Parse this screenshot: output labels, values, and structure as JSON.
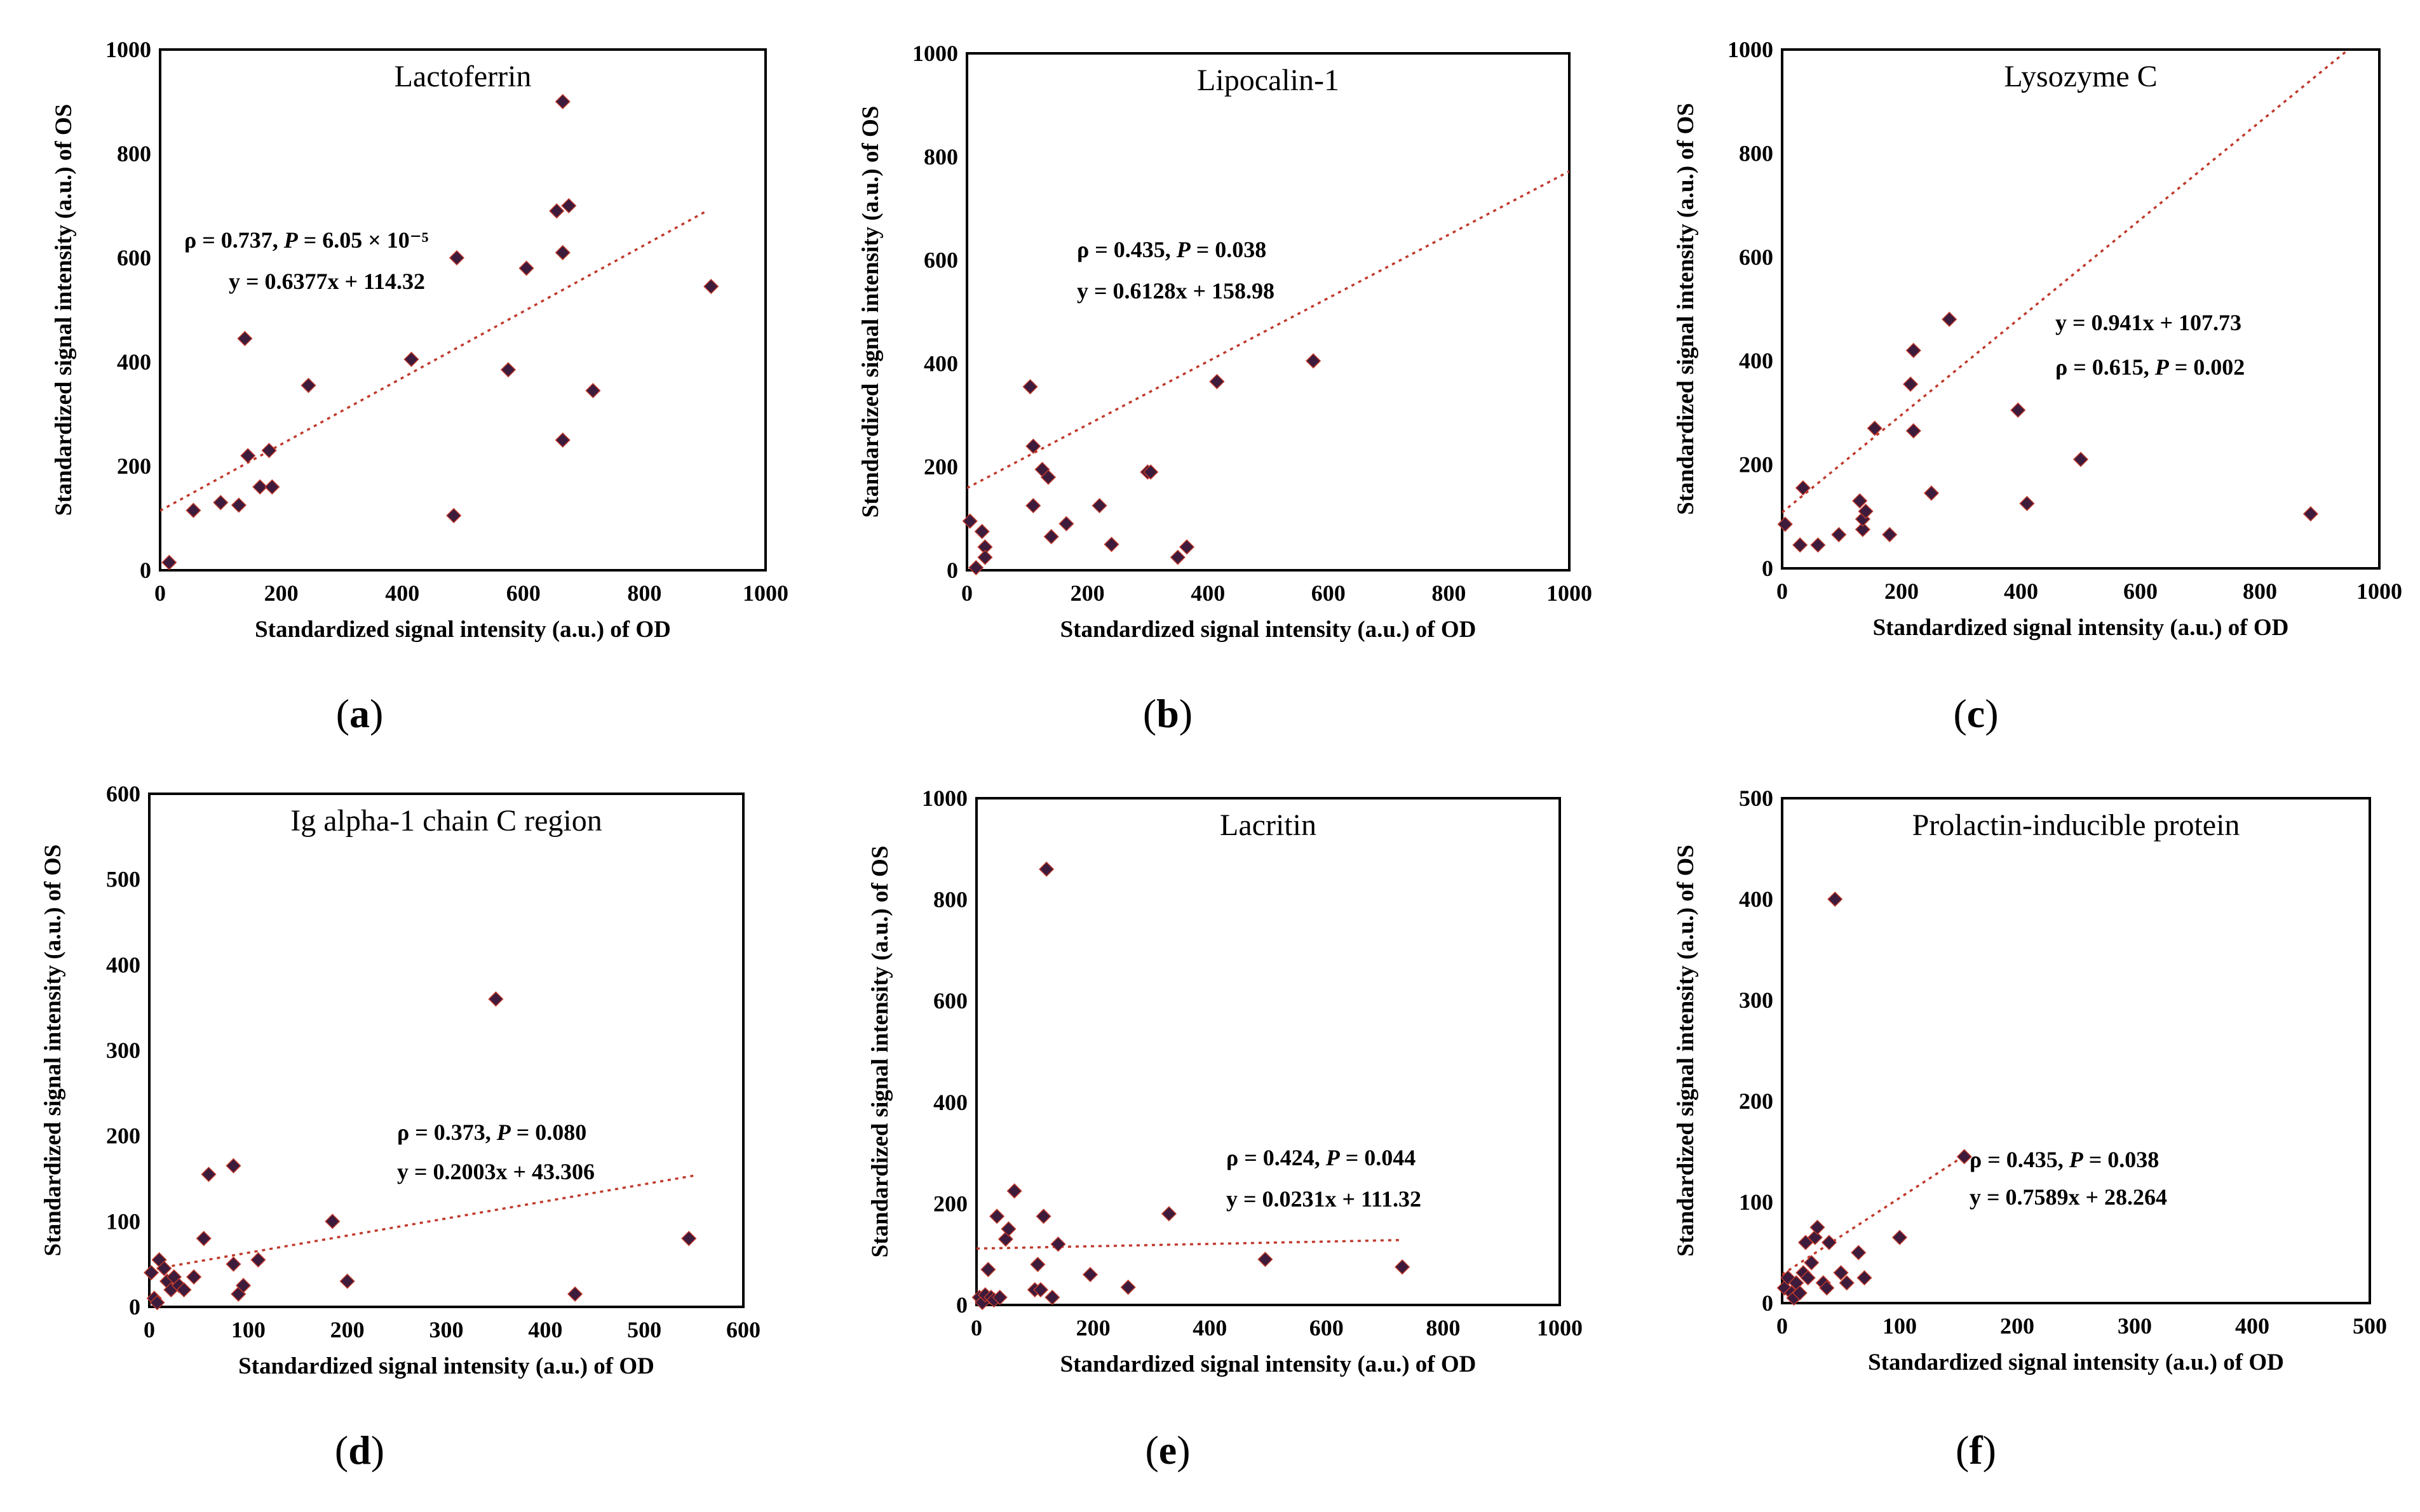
{
  "figure": {
    "panels": [
      {
        "id": "a",
        "label_text": "(a)",
        "letter": "a"
      },
      {
        "id": "b",
        "label_text": "(b)",
        "letter": "b"
      },
      {
        "id": "c",
        "label_text": "(c)",
        "letter": "c"
      },
      {
        "id": "d",
        "label_text": "(d)",
        "letter": "d"
      },
      {
        "id": "e",
        "label_text": "(e)",
        "letter": "e"
      },
      {
        "id": "f",
        "label_text": "(f)",
        "letter": "f"
      }
    ]
  },
  "chart_data": [
    {
      "panel": "a",
      "type": "scatter",
      "title": "Lactoferrin",
      "xlabel": "Standardized signal intensity (a.u.) of OD",
      "ylabel": "Standardized signal intensity (a.u.) of OS",
      "xlim": [
        0,
        1000
      ],
      "ylim": [
        0,
        1000
      ],
      "xticks": [
        0,
        200,
        400,
        600,
        800,
        1000
      ],
      "yticks": [
        0,
        200,
        400,
        600,
        800,
        1000
      ],
      "points": [
        [
          15,
          15
        ],
        [
          55,
          115
        ],
        [
          100,
          130
        ],
        [
          130,
          125
        ],
        [
          140,
          445
        ],
        [
          145,
          220
        ],
        [
          165,
          160
        ],
        [
          180,
          230
        ],
        [
          185,
          160
        ],
        [
          245,
          355
        ],
        [
          415,
          405
        ],
        [
          485,
          105
        ],
        [
          490,
          600
        ],
        [
          575,
          385
        ],
        [
          605,
          580
        ],
        [
          655,
          690
        ],
        [
          665,
          900
        ],
        [
          665,
          610
        ],
        [
          665,
          250
        ],
        [
          675,
          700
        ],
        [
          715,
          345
        ],
        [
          910,
          545
        ]
      ],
      "trendline": {
        "slope": 0.6377,
        "intercept": 114.32,
        "x_range": [
          0,
          900
        ]
      },
      "annotations": {
        "corr": "ρ = 0.737, ",
        "p_label": "P",
        "p_value": " =  6.05 × 10⁻⁵",
        "equation": "y = 0.6377x + 114.32"
      }
    },
    {
      "panel": "b",
      "type": "scatter",
      "title": "Lipocalin-1",
      "xlabel": "Standardized signal intensity (a.u.) of OD",
      "ylabel": "Standardized signal intensity (a.u.) of OS",
      "xlim": [
        0,
        1000
      ],
      "ylim": [
        0,
        1000
      ],
      "xticks": [
        0,
        200,
        400,
        600,
        800,
        1000
      ],
      "yticks": [
        0,
        200,
        400,
        600,
        800,
        1000
      ],
      "points": [
        [
          5,
          95
        ],
        [
          15,
          5
        ],
        [
          25,
          75
        ],
        [
          30,
          45
        ],
        [
          30,
          25
        ],
        [
          105,
          355
        ],
        [
          110,
          240
        ],
        [
          110,
          125
        ],
        [
          125,
          195
        ],
        [
          135,
          180
        ],
        [
          140,
          65
        ],
        [
          165,
          90
        ],
        [
          220,
          125
        ],
        [
          240,
          50
        ],
        [
          300,
          190
        ],
        [
          305,
          190
        ],
        [
          350,
          25
        ],
        [
          365,
          45
        ],
        [
          415,
          365
        ],
        [
          575,
          405
        ]
      ],
      "trendline": {
        "slope": 0.6128,
        "intercept": 158.98,
        "x_range": [
          0,
          1000
        ]
      },
      "annotations": {
        "corr": "ρ = 0.435, ",
        "p_label": "P",
        "p_value": " =  0.038",
        "equation": "y = 0.6128x + 158.98"
      }
    },
    {
      "panel": "c",
      "type": "scatter",
      "title": "Lysozyme C",
      "xlabel": "Standardized signal intensity (a.u.) of OD",
      "ylabel": "Standardized signal intensity (a.u.) of OS",
      "xlim": [
        0,
        1000
      ],
      "ylim": [
        0,
        1000
      ],
      "xticks": [
        0,
        200,
        400,
        600,
        800,
        1000
      ],
      "yticks": [
        0,
        200,
        400,
        600,
        800,
        1000
      ],
      "points": [
        [
          5,
          85
        ],
        [
          30,
          45
        ],
        [
          35,
          155
        ],
        [
          60,
          45
        ],
        [
          95,
          65
        ],
        [
          130,
          130
        ],
        [
          135,
          75
        ],
        [
          135,
          95
        ],
        [
          140,
          110
        ],
        [
          155,
          270
        ],
        [
          180,
          65
        ],
        [
          215,
          355
        ],
        [
          220,
          420
        ],
        [
          220,
          265
        ],
        [
          250,
          145
        ],
        [
          280,
          480
        ],
        [
          395,
          305
        ],
        [
          410,
          125
        ],
        [
          500,
          210
        ],
        [
          885,
          105
        ]
      ],
      "trendline": {
        "slope": 0.941,
        "intercept": 107.73,
        "x_range": [
          0,
          950
        ]
      },
      "annotations": {
        "corr": "ρ = 0.615, ",
        "p_label": "P",
        "p_value": " =  0.002",
        "equation": "y = 0.941x + 107.73"
      }
    },
    {
      "panel": "d",
      "type": "scatter",
      "title": "Ig alpha-1 chain C region",
      "xlabel": "Standardized signal intensity (a.u.) of OD",
      "ylabel": "Standardized signal intensity (a.u.) of OS",
      "xlim": [
        0,
        600
      ],
      "ylim": [
        0,
        600
      ],
      "xticks": [
        0,
        100,
        200,
        300,
        400,
        500,
        600
      ],
      "yticks": [
        0,
        100,
        200,
        300,
        400,
        500,
        600
      ],
      "points": [
        [
          2,
          40
        ],
        [
          5,
          10
        ],
        [
          8,
          5
        ],
        [
          10,
          55
        ],
        [
          15,
          45
        ],
        [
          18,
          30
        ],
        [
          22,
          20
        ],
        [
          25,
          35
        ],
        [
          30,
          25
        ],
        [
          35,
          20
        ],
        [
          45,
          35
        ],
        [
          55,
          80
        ],
        [
          60,
          155
        ],
        [
          85,
          165
        ],
        [
          85,
          50
        ],
        [
          90,
          15
        ],
        [
          95,
          25
        ],
        [
          110,
          55
        ],
        [
          185,
          100
        ],
        [
          200,
          30
        ],
        [
          350,
          360
        ],
        [
          430,
          15
        ],
        [
          545,
          80
        ]
      ],
      "trendline": {
        "slope": 0.2003,
        "intercept": 43.306,
        "x_range": [
          0,
          550
        ]
      },
      "annotations": {
        "corr": "ρ = 0.373, ",
        "p_label": "P",
        "p_value": " =  0.080",
        "equation": "y = 0.2003x + 43.306"
      }
    },
    {
      "panel": "e",
      "type": "scatter",
      "title": "Lacritin",
      "xlabel": "Standardized signal intensity (a.u.) of OD",
      "ylabel": "Standardized signal intensity (a.u.) of OS",
      "xlim": [
        0,
        1000
      ],
      "ylim": [
        0,
        1000
      ],
      "xticks": [
        0,
        200,
        400,
        600,
        800,
        1000
      ],
      "yticks": [
        0,
        200,
        400,
        600,
        800,
        1000
      ],
      "points": [
        [
          5,
          15
        ],
        [
          10,
          5
        ],
        [
          15,
          20
        ],
        [
          20,
          70
        ],
        [
          25,
          15
        ],
        [
          30,
          10
        ],
        [
          35,
          175
        ],
        [
          40,
          15
        ],
        [
          50,
          130
        ],
        [
          55,
          150
        ],
        [
          65,
          225
        ],
        [
          100,
          30
        ],
        [
          105,
          80
        ],
        [
          110,
          30
        ],
        [
          115,
          175
        ],
        [
          120,
          860
        ],
        [
          130,
          15
        ],
        [
          140,
          120
        ],
        [
          195,
          60
        ],
        [
          260,
          35
        ],
        [
          330,
          180
        ],
        [
          495,
          90
        ],
        [
          730,
          75
        ]
      ],
      "trendline": {
        "slope": 0.0231,
        "intercept": 111.32,
        "x_range": [
          0,
          730
        ]
      },
      "annotations": {
        "corr": "ρ = 0.424, ",
        "p_label": "P",
        "p_value": " =  0.044",
        "equation": "y = 0.0231x + 111.32"
      }
    },
    {
      "panel": "f",
      "type": "scatter",
      "title": "Prolactin-inducible protein",
      "xlabel": "Standardized signal intensity (a.u.) of OD",
      "ylabel": "Standardized signal intensity (a.u.) of OS",
      "xlim": [
        0,
        500
      ],
      "ylim": [
        0,
        500
      ],
      "xticks": [
        0,
        100,
        200,
        300,
        400,
        500
      ],
      "yticks": [
        0,
        100,
        200,
        300,
        400,
        500
      ],
      "points": [
        [
          2,
          15
        ],
        [
          5,
          25
        ],
        [
          8,
          10
        ],
        [
          10,
          5
        ],
        [
          12,
          20
        ],
        [
          15,
          10
        ],
        [
          18,
          30
        ],
        [
          20,
          60
        ],
        [
          22,
          25
        ],
        [
          25,
          40
        ],
        [
          28,
          65
        ],
        [
          30,
          75
        ],
        [
          35,
          20
        ],
        [
          38,
          15
        ],
        [
          40,
          60
        ],
        [
          45,
          400
        ],
        [
          50,
          30
        ],
        [
          55,
          20
        ],
        [
          65,
          50
        ],
        [
          70,
          25
        ],
        [
          100,
          65
        ],
        [
          155,
          145
        ]
      ],
      "trendline": {
        "slope": 0.7589,
        "intercept": 28.264,
        "x_range": [
          0,
          155
        ]
      },
      "annotations": {
        "corr": "ρ = 0.435, ",
        "p_label": "P",
        "p_value": " =  0.038",
        "equation": "y = 0.7589x + 28.264"
      }
    }
  ]
}
